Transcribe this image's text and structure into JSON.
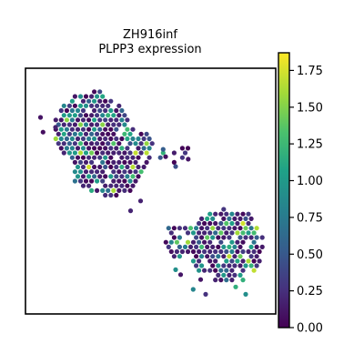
{
  "chart_data": {
    "type": "scatter",
    "title": "ZH916inf",
    "subtitle": "PLPP3 expression",
    "xlabel": "",
    "ylabel": "",
    "grid": false,
    "colormap": "viridis",
    "colorbar": {
      "min": 0.0,
      "max": 1.87,
      "ticks": [
        0.0,
        0.25,
        0.5,
        0.75,
        1.0,
        1.25,
        1.5,
        1.75
      ],
      "tick_labels": [
        "0.00",
        "0.25",
        "0.50",
        "0.75",
        "1.00",
        "1.25",
        "1.50",
        "1.75"
      ]
    },
    "xlim": [
      0,
      100
    ],
    "ylim": [
      0,
      100
    ],
    "clusters": [
      {
        "name": "upper-left",
        "cx": 27,
        "cy": 25,
        "rx": 15,
        "ry": 15,
        "density": 1.0
      },
      {
        "name": "upper-left-lower",
        "cx": 33,
        "cy": 40,
        "rx": 14,
        "ry": 12,
        "density": 1.0
      },
      {
        "name": "upper-left-bridge",
        "cx": 44,
        "cy": 33,
        "rx": 8,
        "ry": 7,
        "density": 0.9
      },
      {
        "name": "right-tail",
        "cx": 60,
        "cy": 35,
        "rx": 7,
        "ry": 4,
        "density": 0.35
      },
      {
        "name": "lower-right-main",
        "cx": 80,
        "cy": 72,
        "rx": 15,
        "ry": 15,
        "density": 1.0
      },
      {
        "name": "lower-right-left",
        "cx": 62,
        "cy": 70,
        "rx": 8,
        "ry": 7,
        "density": 0.85
      }
    ],
    "value_distribution": {
      "low_fraction": 0.6,
      "mean": 0.45
    }
  }
}
